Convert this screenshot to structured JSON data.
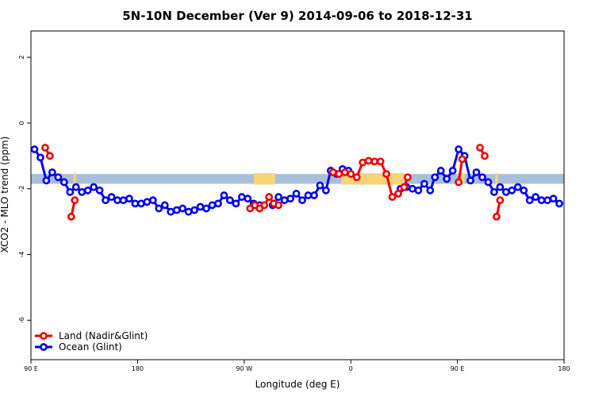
{
  "chart_data": {
    "type": "line",
    "title": "5N-10N December (Ver 9)   2014-09-06 to 2018-12-31",
    "xlabel": "Longitude (deg E)",
    "ylabel": "XCO2 - MLO trend (ppm)",
    "xlim": [
      90,
      540
    ],
    "ylim": [
      -7.2,
      2.8
    ],
    "x_ticks": [
      {
        "value": 90,
        "label": "90 E"
      },
      {
        "value": 180,
        "label": "180"
      },
      {
        "value": 270,
        "label": "90 W"
      },
      {
        "value": 360,
        "label": "0"
      },
      {
        "value": 450,
        "label": "90 E"
      },
      {
        "value": 540,
        "label": "180"
      }
    ],
    "y_ticks": [
      {
        "value": 2,
        "label": "2"
      },
      {
        "value": 0,
        "label": "0"
      },
      {
        "value": -2,
        "label": "-2"
      },
      {
        "value": -4,
        "label": "-4"
      },
      {
        "value": -6,
        "label": "-6"
      }
    ],
    "latitude_band": {
      "y_range": [
        -1.55,
        -1.85
      ],
      "ocean_color": "#a8bfdb",
      "land_color": "#f7d47a",
      "land_segments": [
        [
          126,
          128
        ],
        [
          278,
          296
        ],
        [
          352,
          405
        ],
        [
          453,
          456
        ],
        [
          482,
          484
        ]
      ]
    },
    "series": [
      {
        "name": "Land (Nadir&Glint)",
        "color": "#ee0000",
        "segments": [
          [
            [
              102,
              -0.75
            ],
            [
              106,
              -1.0
            ]
          ],
          [
            [
              124,
              -2.85
            ],
            [
              127,
              -2.35
            ]
          ],
          [
            [
              275,
              -2.6
            ],
            [
              279,
              -2.5
            ],
            [
              283,
              -2.6
            ],
            [
              287,
              -2.5
            ],
            [
              291,
              -2.25
            ],
            [
              295,
              -2.45
            ],
            [
              299,
              -2.5
            ]
          ],
          [
            [
              345,
              -1.5
            ],
            [
              350,
              -1.55
            ],
            [
              355,
              -1.5
            ],
            [
              360,
              -1.55
            ],
            [
              365,
              -1.65
            ],
            [
              370,
              -1.2
            ],
            [
              375,
              -1.15
            ],
            [
              380,
              -1.17
            ],
            [
              385,
              -1.17
            ],
            [
              390,
              -1.55
            ],
            [
              395,
              -2.25
            ],
            [
              400,
              -2.15
            ],
            [
              405,
              -1.95
            ],
            [
              408,
              -1.65
            ]
          ],
          [
            [
              451,
              -1.8
            ],
            [
              454,
              -1.1
            ]
          ],
          [
            [
              469,
              -0.75
            ],
            [
              473,
              -1.0
            ]
          ],
          [
            [
              483,
              -2.85
            ],
            [
              486,
              -2.35
            ]
          ]
        ]
      },
      {
        "name": "Ocean (Glint)",
        "color": "#0000ee",
        "segments": [
          [
            [
              93,
              -0.8
            ],
            [
              98,
              -1.05
            ],
            [
              103,
              -1.75
            ],
            [
              108,
              -1.5
            ],
            [
              113,
              -1.65
            ],
            [
              118,
              -1.8
            ],
            [
              123,
              -2.1
            ],
            [
              128,
              -1.95
            ],
            [
              133,
              -2.1
            ],
            [
              138,
              -2.05
            ],
            [
              143,
              -1.95
            ],
            [
              148,
              -2.05
            ],
            [
              153,
              -2.35
            ],
            [
              158,
              -2.25
            ],
            [
              163,
              -2.35
            ],
            [
              168,
              -2.35
            ],
            [
              173,
              -2.3
            ],
            [
              178,
              -2.45
            ],
            [
              183,
              -2.45
            ],
            [
              188,
              -2.4
            ],
            [
              193,
              -2.35
            ],
            [
              198,
              -2.6
            ],
            [
              203,
              -2.5
            ],
            [
              208,
              -2.7
            ],
            [
              213,
              -2.65
            ],
            [
              218,
              -2.6
            ],
            [
              223,
              -2.7
            ],
            [
              228,
              -2.65
            ],
            [
              233,
              -2.55
            ],
            [
              238,
              -2.6
            ],
            [
              243,
              -2.5
            ],
            [
              248,
              -2.45
            ],
            [
              253,
              -2.2
            ],
            [
              258,
              -2.35
            ],
            [
              263,
              -2.45
            ],
            [
              268,
              -2.25
            ],
            [
              273,
              -2.3
            ],
            [
              278,
              -2.45
            ],
            [
              283,
              -2.5
            ]
          ],
          [
            [
              294,
              -2.5
            ],
            [
              299,
              -2.25
            ],
            [
              304,
              -2.35
            ],
            [
              309,
              -2.3
            ],
            [
              314,
              -2.15
            ],
            [
              319,
              -2.35
            ],
            [
              324,
              -2.2
            ],
            [
              329,
              -2.2
            ],
            [
              334,
              -1.9
            ],
            [
              339,
              -2.05
            ],
            [
              343,
              -1.45
            ],
            [
              348,
              -1.55
            ],
            [
              353,
              -1.4
            ],
            [
              358,
              -1.45
            ]
          ],
          [
            [
              402,
              -2.0
            ],
            [
              407,
              -1.95
            ],
            [
              412,
              -2.0
            ],
            [
              417,
              -2.05
            ],
            [
              422,
              -1.85
            ],
            [
              427,
              -2.05
            ],
            [
              431,
              -1.65
            ],
            [
              436,
              -1.45
            ],
            [
              441,
              -1.7
            ],
            [
              446,
              -1.45
            ],
            [
              451,
              -0.8
            ],
            [
              456,
              -1.0
            ],
            [
              461,
              -1.75
            ],
            [
              466,
              -1.5
            ],
            [
              471,
              -1.65
            ],
            [
              476,
              -1.8
            ],
            [
              481,
              -2.1
            ],
            [
              486,
              -1.95
            ],
            [
              491,
              -2.1
            ],
            [
              496,
              -2.05
            ],
            [
              501,
              -1.95
            ],
            [
              506,
              -2.05
            ],
            [
              511,
              -2.35
            ],
            [
              516,
              -2.25
            ],
            [
              521,
              -2.35
            ],
            [
              526,
              -2.35
            ],
            [
              531,
              -2.3
            ],
            [
              536,
              -2.45
            ]
          ]
        ]
      }
    ],
    "legend": {
      "position": "bottom-left",
      "items": [
        {
          "label": "Land (Nadir&Glint)",
          "color": "#ee0000"
        },
        {
          "label": "Ocean (Glint)",
          "color": "#0000ee"
        }
      ]
    }
  }
}
